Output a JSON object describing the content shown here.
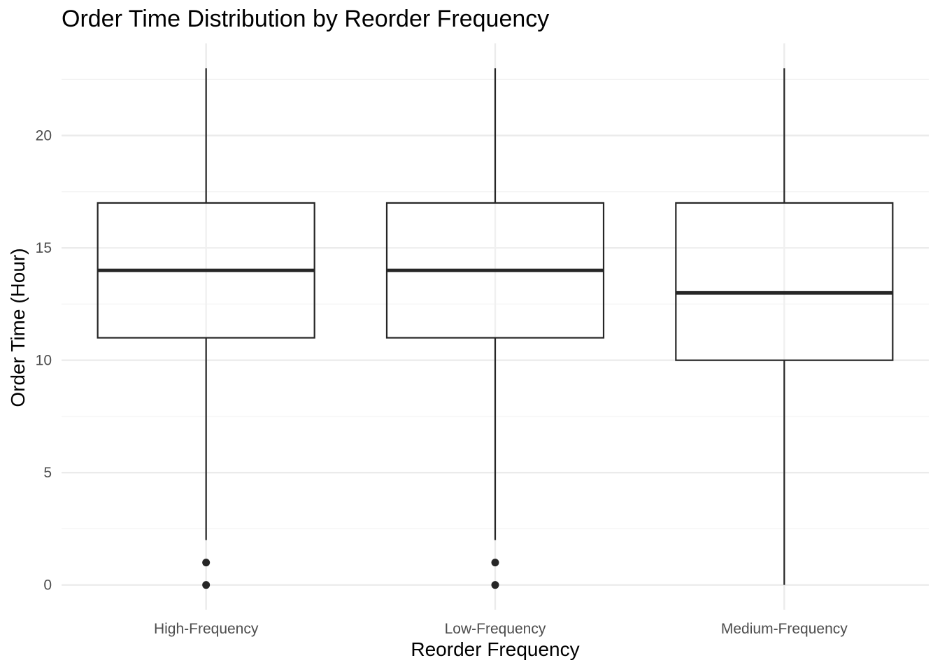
{
  "chart_data": {
    "type": "box",
    "title": "Order Time Distribution by Reorder Frequency",
    "xlabel": "Reorder Frequency",
    "ylabel": "Order Time (Hour)",
    "ylim": [
      -1.1,
      24.1
    ],
    "y_ticks": [
      0,
      5,
      10,
      15,
      20
    ],
    "grid": true,
    "categories": [
      "High-Frequency",
      "Low-Frequency",
      "Medium-Frequency"
    ],
    "boxes": [
      {
        "category": "High-Frequency",
        "whisker_low": 2,
        "q1": 11,
        "median": 14,
        "q3": 17,
        "whisker_high": 23,
        "outliers": [
          0,
          1
        ]
      },
      {
        "category": "Low-Frequency",
        "whisker_low": 2,
        "q1": 11,
        "median": 14,
        "q3": 17,
        "whisker_high": 23,
        "outliers": [
          0,
          1
        ]
      },
      {
        "category": "Medium-Frequency",
        "whisker_low": 0,
        "q1": 10,
        "median": 13,
        "q3": 17,
        "whisker_high": 23,
        "outliers": []
      }
    ],
    "colors": {
      "box_line": "#262626",
      "box_fill": "#ffffff",
      "grid_major": "#ebebeb",
      "grid_minor": "#f2f2f2",
      "axis_text": "#4d4d4d"
    }
  }
}
